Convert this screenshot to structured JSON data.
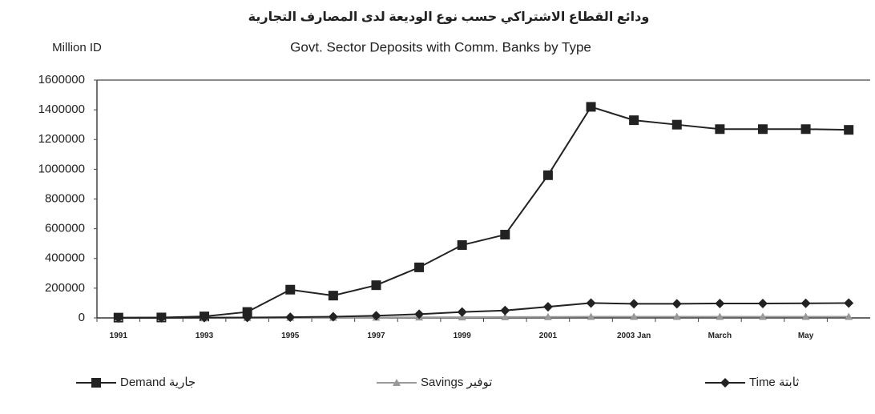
{
  "chart_data": {
    "type": "line",
    "title": "ودائع القطاع الاشتراكي حسب نوع الوديعة لدى المصارف التجارية",
    "subtitle": "Govt. Sector Deposits with Comm. Banks by Type",
    "y_label": "Million ID",
    "categories": [
      "1991",
      null,
      "1993",
      null,
      "1995",
      null,
      "1997",
      null,
      "1999",
      null,
      "2001",
      null,
      "2003 Jan",
      null,
      "March",
      null,
      "May",
      null
    ],
    "series": [
      {
        "name": "Demand جارية",
        "color": "#222222",
        "marker": "square",
        "values": [
          2000,
          3000,
          10000,
          40000,
          190000,
          150000,
          220000,
          340000,
          490000,
          560000,
          960000,
          1420000,
          1330000,
          1300000,
          1270000,
          1270000,
          1270000,
          1265000
        ]
      },
      {
        "name": "Savings توفير",
        "color": "#999999",
        "marker": "triangle",
        "values": [
          0,
          0,
          0,
          1000,
          2000,
          2000,
          3000,
          4000,
          5000,
          6000,
          7000,
          8000,
          8000,
          8000,
          8000,
          8000,
          8000,
          8000
        ]
      },
      {
        "name": "Time ثابتة",
        "color": "#222222",
        "marker": "diamond",
        "values": [
          0,
          0,
          2000,
          3000,
          5000,
          8000,
          15000,
          25000,
          40000,
          50000,
          75000,
          100000,
          95000,
          95000,
          97000,
          97000,
          98000,
          100000
        ]
      }
    ],
    "ylim": [
      0,
      1600000
    ],
    "yticks": [
      0,
      200000,
      400000,
      600000,
      800000,
      1000000,
      1200000,
      1400000,
      1600000
    ],
    "grid": false
  }
}
